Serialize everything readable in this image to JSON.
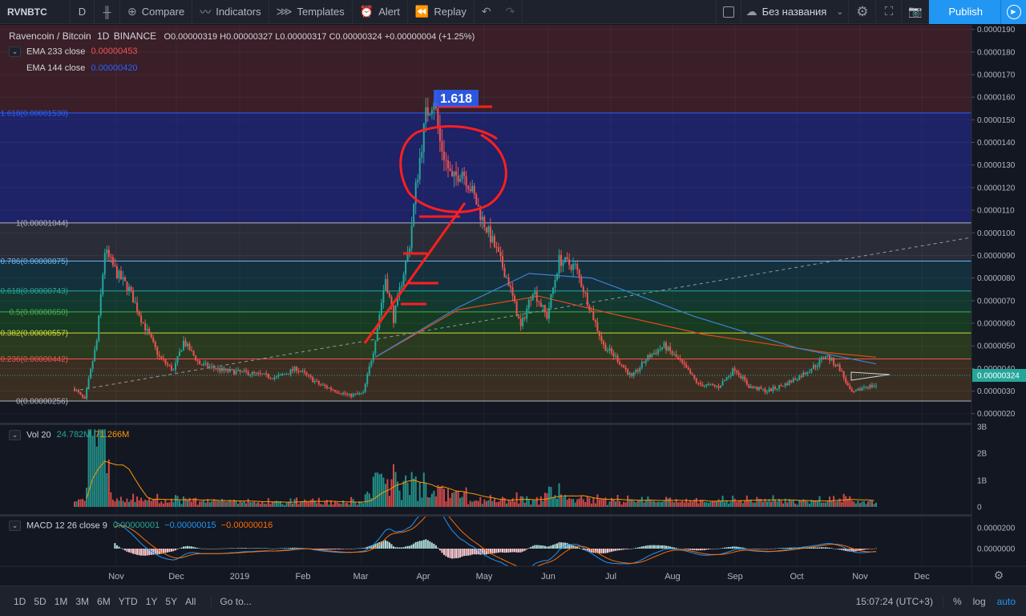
{
  "toolbar": {
    "symbol": "RVNBTC",
    "interval": "D",
    "compare": "Compare",
    "indicators": "Indicators",
    "templates": "Templates",
    "alert": "Alert",
    "replay": "Replay",
    "layout_name": "Без названия",
    "publish": "Publish"
  },
  "legend": {
    "title": "Ravencoin / Bitcoin",
    "interval": "1D",
    "exchange": "BINANCE",
    "ohlc": "O0.00000319 H0.00000327 L0.00000317 C0.00000324 +0.00000004 (+1.25%)",
    "ema1_label": "EMA 233 close",
    "ema1_value": "0.00000453",
    "ema2_label": "EMA 144 close",
    "ema2_value": "0.00000420",
    "vol_label": "Vol 20",
    "vol_value1": "24.782M",
    "vol_value2": "71.266M",
    "macd_label": "MACD 12 26 close 9",
    "macd_v1": "0.00000001",
    "macd_v2": "−0.00000015",
    "macd_v3": "−0.00000016"
  },
  "annotation": {
    "fib_ext_label": "1.618"
  },
  "fib_levels": [
    {
      "label": "1.618(0.00001530)",
      "price": 1.53e-05,
      "color": "#2962ff"
    },
    {
      "label": "1(0.00001044)",
      "price": 1.044e-05,
      "color": "#b2b5be"
    },
    {
      "label": "0.786(0.00000875)",
      "price": 8.75e-06,
      "color": "#64b5f6"
    },
    {
      "label": "0.618(0.00000743)",
      "price": 7.43e-06,
      "color": "#26a69a"
    },
    {
      "label": "0.5(0.00000650)",
      "price": 6.5e-06,
      "color": "#4caf50"
    },
    {
      "label": "0.382(0.00000557)",
      "price": 5.57e-06,
      "color": "#cddc39"
    },
    {
      "label": "0.236(0.00000442)",
      "price": 4.42e-06,
      "color": "#ef5350"
    },
    {
      "label": "0(0.00000256)",
      "price": 2.56e-06,
      "color": "#b2b5be"
    }
  ],
  "price_axis": [
    "0.0000190",
    "0.0000180",
    "0.0000170",
    "0.0000160",
    "0.0000150",
    "0.0000140",
    "0.0000130",
    "0.0000120",
    "0.0000110",
    "0.0000100",
    "0.0000090",
    "0.0000080",
    "0.0000070",
    "0.0000060",
    "0.0000050",
    "0.0000040",
    "0.0000030",
    "0.0000020"
  ],
  "last_price": "0.00000324",
  "vol_axis": [
    "3B",
    "2B",
    "1B",
    "0"
  ],
  "macd_axis": [
    "0.0000200",
    "0.0000000"
  ],
  "time_axis": [
    "Nov",
    "Dec",
    "2019",
    "Feb",
    "Mar",
    "Apr",
    "May",
    "Jun",
    "Jul",
    "Aug",
    "Sep",
    "Oct",
    "Nov",
    "Dec"
  ],
  "bottombar": {
    "ranges": [
      "1D",
      "5D",
      "1M",
      "3M",
      "6M",
      "YTD",
      "1Y",
      "5Y",
      "All"
    ],
    "goto": "Go to...",
    "clock": "15:07:24 (UTC+3)",
    "percent": "%",
    "log": "log",
    "auto": "auto"
  },
  "chart_data": {
    "type": "candlestick",
    "title": "Ravencoin / Bitcoin",
    "x_domain": [
      "2018-10-07",
      "2019-11-08"
    ],
    "ylim": [
      1.6e-06,
      1.92e-05
    ],
    "close_anchors": [
      [
        "2018-10-07",
        3.1e-06
      ],
      [
        "2018-10-12",
        2.6e-06
      ],
      [
        "2018-10-18",
        5.2e-06
      ],
      [
        "2018-10-22",
        9.2e-06
      ],
      [
        "2018-10-28",
        8.2e-06
      ],
      [
        "2018-11-03",
        7.5e-06
      ],
      [
        "2018-11-10",
        6e-06
      ],
      [
        "2018-11-18",
        4.5e-06
      ],
      [
        "2018-11-25",
        3.9e-06
      ],
      [
        "2018-11-30",
        5.2e-06
      ],
      [
        "2018-12-08",
        4.2e-06
      ],
      [
        "2018-12-20",
        3.9e-06
      ],
      [
        "2019-01-01",
        3.8e-06
      ],
      [
        "2019-01-15",
        3.6e-06
      ],
      [
        "2019-01-25",
        4e-06
      ],
      [
        "2019-02-05",
        3.3e-06
      ],
      [
        "2019-02-20",
        2.8e-06
      ],
      [
        "2019-02-27",
        2.9e-06
      ],
      [
        "2019-03-04",
        4.8e-06
      ],
      [
        "2019-03-10",
        8e-06
      ],
      [
        "2019-03-14",
        6.2e-06
      ],
      [
        "2019-03-22",
        9.5e-06
      ],
      [
        "2019-03-25",
        1.2e-05
      ],
      [
        "2019-03-30",
        1.52e-05
      ],
      [
        "2019-04-03",
        1.6e-05
      ],
      [
        "2019-04-06",
        1.4e-05
      ],
      [
        "2019-04-12",
        1.23e-05
      ],
      [
        "2019-04-17",
        1.28e-05
      ],
      [
        "2019-04-22",
        1.18e-05
      ],
      [
        "2019-04-27",
        1.06e-05
      ],
      [
        "2019-05-04",
        9.2e-06
      ],
      [
        "2019-05-10",
        7.8e-06
      ],
      [
        "2019-05-16",
        5.8e-06
      ],
      [
        "2019-05-22",
        7.5e-06
      ],
      [
        "2019-05-29",
        6.3e-06
      ],
      [
        "2019-06-04",
        8.8e-06
      ],
      [
        "2019-06-12",
        8.5e-06
      ],
      [
        "2019-06-18",
        7e-06
      ],
      [
        "2019-06-26",
        5e-06
      ],
      [
        "2019-07-02",
        4.5e-06
      ],
      [
        "2019-07-10",
        3.6e-06
      ],
      [
        "2019-07-18",
        4.5e-06
      ],
      [
        "2019-07-26",
        5e-06
      ],
      [
        "2019-08-03",
        4.3e-06
      ],
      [
        "2019-08-12",
        3.3e-06
      ],
      [
        "2019-08-22",
        3.2e-06
      ],
      [
        "2019-08-30",
        4e-06
      ],
      [
        "2019-09-06",
        3.2e-06
      ],
      [
        "2019-09-15",
        3e-06
      ],
      [
        "2019-09-24",
        3.3e-06
      ],
      [
        "2019-10-02",
        3.7e-06
      ],
      [
        "2019-10-10",
        4.2e-06
      ],
      [
        "2019-10-14",
        4.6e-06
      ],
      [
        "2019-10-21",
        4e-06
      ],
      [
        "2019-10-26",
        3e-06
      ],
      [
        "2019-10-28",
        2.9e-06
      ],
      [
        "2019-11-02",
        3.2e-06
      ],
      [
        "2019-11-08",
        3.24e-06
      ]
    ],
    "ema233": [
      [
        "2019-03-05",
        4.5e-06
      ],
      [
        "2019-04-15",
        6.6e-06
      ],
      [
        "2019-05-25",
        7.2e-06
      ],
      [
        "2019-07-01",
        6.4e-06
      ],
      [
        "2019-08-15",
        5.5e-06
      ],
      [
        "2019-10-15",
        4.7e-06
      ],
      [
        "2019-11-08",
        4.5e-06
      ]
    ],
    "ema144": [
      [
        "2019-03-05",
        4.5e-06
      ],
      [
        "2019-04-15",
        6.7e-06
      ],
      [
        "2019-05-20",
        8.2e-06
      ],
      [
        "2019-06-20",
        8e-06
      ],
      [
        "2019-08-10",
        6.3e-06
      ],
      [
        "2019-09-30",
        4.9e-06
      ],
      [
        "2019-11-08",
        4.2e-06
      ]
    ],
    "volume_unit": "B",
    "vol_ylim": [
      0,
      3
    ],
    "macd_ylim": [
      -1e-06,
      2.7e-06
    ]
  }
}
